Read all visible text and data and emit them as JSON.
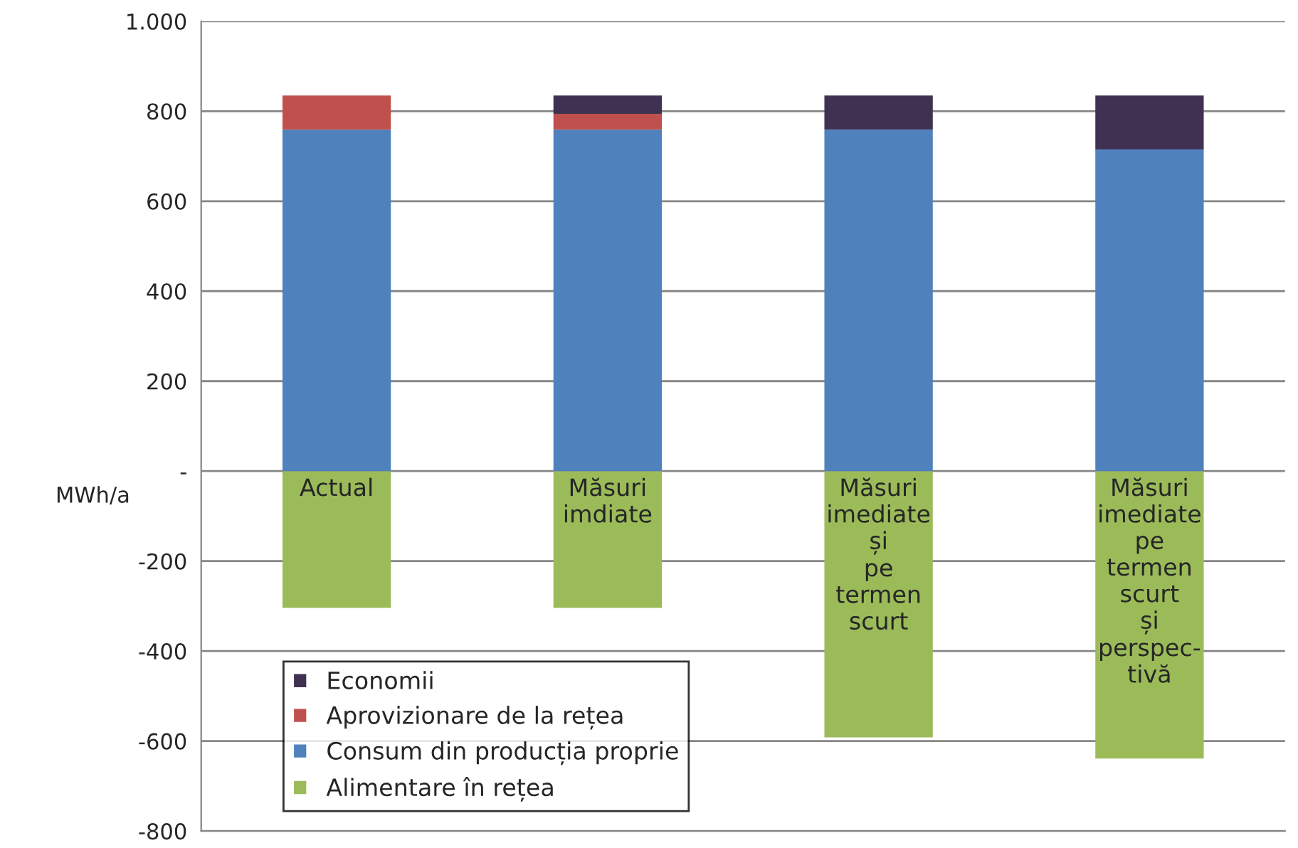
{
  "chart_data": {
    "type": "bar",
    "stacked": true,
    "ylabel": "MWh/a",
    "categories": [
      "Actual",
      "Măsuri imdiate",
      "Măsuri imediate și pe termen scurt",
      "Măsuri imediate pe termen scurt și perspec-tivă"
    ],
    "series": [
      {
        "name": "Alimentare în rețea",
        "color": "#9bbb59",
        "values": [
          -304,
          -304,
          -592,
          -639
        ]
      },
      {
        "name": "Consum din producția proprie",
        "color": "#4f81bd",
        "values": [
          759,
          759,
          759,
          715
        ]
      },
      {
        "name": "Aprovizionare de la rețea",
        "color": "#c0504d",
        "values": [
          76,
          35,
          0,
          0
        ]
      },
      {
        "name": "Economii",
        "color": "#403152",
        "values": [
          0,
          41,
          76,
          120
        ]
      }
    ],
    "ylim": [
      -800,
      1000
    ],
    "yticks": [
      {
        "value": -800,
        "label": "-800"
      },
      {
        "value": -600,
        "label": "-600"
      },
      {
        "value": -400,
        "label": "-400"
      },
      {
        "value": -200,
        "label": "-200"
      },
      {
        "value": 0,
        "label": "-"
      },
      200,
      400,
      600,
      800,
      {
        "value": 1000,
        "label": "1.000"
      }
    ],
    "grid": "y",
    "legend": "bottom left"
  }
}
